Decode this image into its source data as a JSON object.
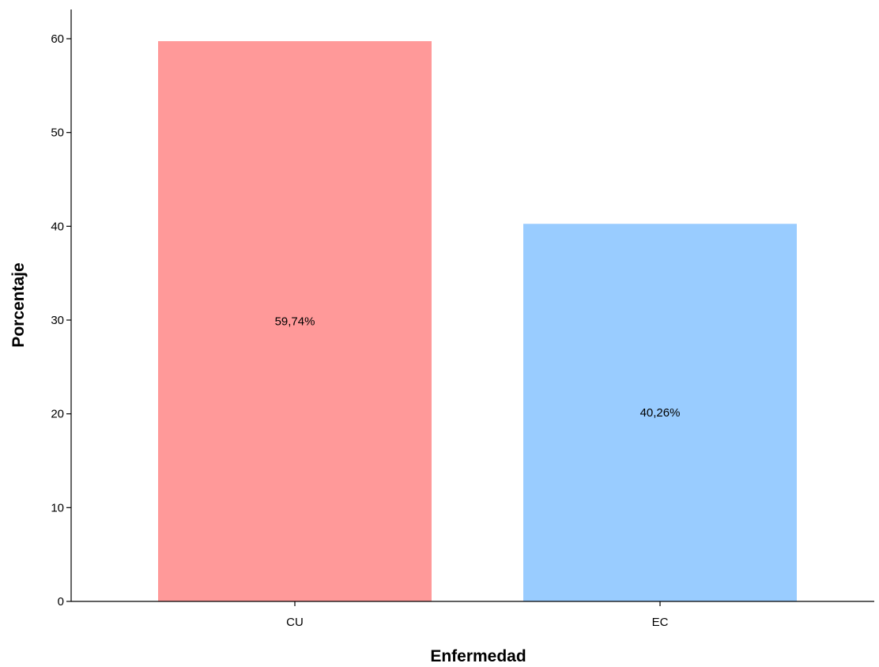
{
  "chart_data": {
    "type": "bar",
    "categories": [
      "CU",
      "EC"
    ],
    "values": [
      59.74,
      40.26
    ],
    "data_labels": [
      "59,74%",
      "40,26%"
    ],
    "colors": [
      "#FF9999",
      "#99CCFF"
    ],
    "xlabel": "Enfermedad",
    "ylabel": "Porcentaje",
    "ylim": [
      0,
      60
    ],
    "yticks": [
      0,
      10,
      20,
      30,
      40,
      50,
      60
    ],
    "ytick_labels": [
      "0",
      "10",
      "20",
      "30",
      "40",
      "50",
      "60"
    ],
    "grid": false,
    "legend": "none"
  }
}
